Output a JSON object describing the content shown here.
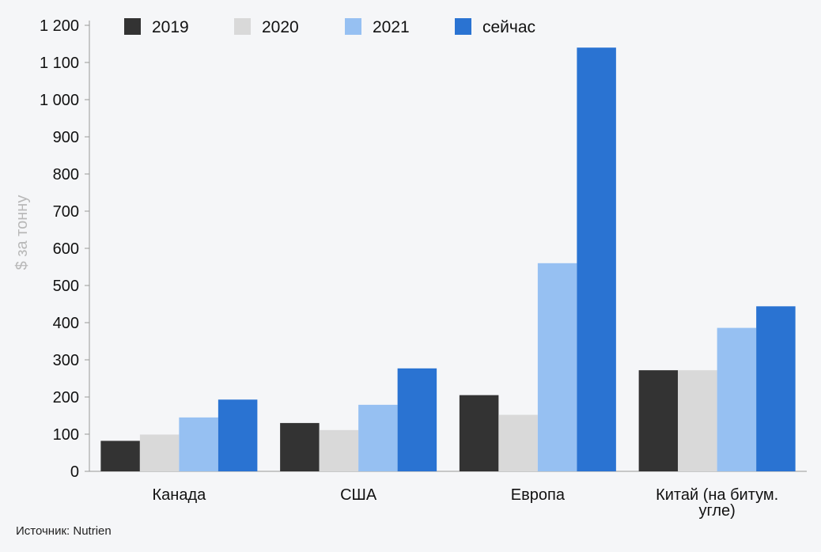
{
  "chart_data": {
    "type": "bar",
    "title": "",
    "xlabel": "",
    "ylabel": "$ за тонну",
    "ylim": [
      0,
      1200
    ],
    "yticks": [
      0,
      100,
      200,
      300,
      400,
      500,
      600,
      700,
      800,
      900,
      1000,
      1100,
      1200
    ],
    "ytick_labels": [
      "0",
      "100",
      "200",
      "300",
      "400",
      "500",
      "600",
      "700",
      "800",
      "900",
      "1 000",
      "1 100",
      "1 200"
    ],
    "categories": [
      "Канада",
      "США",
      "Европа",
      "Китай (на битум. угле)"
    ],
    "category_lines": [
      [
        "Канада"
      ],
      [
        "США"
      ],
      [
        "Европа"
      ],
      [
        "Китай (на битум.",
        "угле)"
      ]
    ],
    "series": [
      {
        "name": "2019",
        "color": "#333333",
        "values": [
          82,
          130,
          205,
          272
        ]
      },
      {
        "name": "2020",
        "color": "#d9d9d9",
        "values": [
          99,
          111,
          152,
          272
        ]
      },
      {
        "name": "2021",
        "color": "#96c0f2",
        "values": [
          145,
          179,
          560,
          386
        ]
      },
      {
        "name": "сейчас",
        "color": "#2a73d2",
        "values": [
          193,
          277,
          1140,
          444
        ]
      }
    ],
    "legend_position": "top",
    "grid": false
  },
  "source": "Источник: Nutrien"
}
